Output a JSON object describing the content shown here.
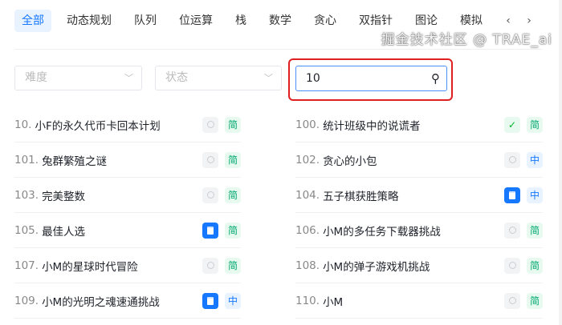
{
  "tabs": [
    "全部",
    "动态规划",
    "队列",
    "位运算",
    "栈",
    "数学",
    "贪心",
    "双指针",
    "图论",
    "模拟"
  ],
  "filters": {
    "difficulty": "难度",
    "status": "状态",
    "search_value": "10"
  },
  "left": [
    {
      "num": "10.",
      "title": "小F的永久代币卡回本计划",
      "status": "none",
      "difficulty": "简"
    },
    {
      "num": "101.",
      "title": "兔群繁殖之谜",
      "status": "none",
      "difficulty": "简"
    },
    {
      "num": "103.",
      "title": "完美整数",
      "status": "none",
      "difficulty": "简"
    },
    {
      "num": "105.",
      "title": "最佳人选",
      "status": "calendar",
      "difficulty": "简"
    },
    {
      "num": "107.",
      "title": "小M的星球时代冒险",
      "status": "none",
      "difficulty": "简"
    },
    {
      "num": "109.",
      "title": "小M的光明之魂速通挑战",
      "status": "calendar",
      "difficulty": "中"
    }
  ],
  "right": [
    {
      "num": "100.",
      "title": "统计班级中的说谎者",
      "status": "done",
      "difficulty": "简"
    },
    {
      "num": "102.",
      "title": "贪心的小包",
      "status": "none",
      "difficulty": "中"
    },
    {
      "num": "104.",
      "title": "五子棋获胜策略",
      "status": "calendar",
      "difficulty": "中"
    },
    {
      "num": "106.",
      "title": "小M的多任务下载器挑战",
      "status": "none",
      "difficulty": "简"
    },
    {
      "num": "108.",
      "title": "小M的弹子游戏机挑战",
      "status": "none",
      "difficulty": "简"
    },
    {
      "num": "110.",
      "title": "小M",
      "status": "none",
      "difficulty": "简"
    }
  ],
  "watermark": "掘金技术社区 @ TRAE_ai"
}
